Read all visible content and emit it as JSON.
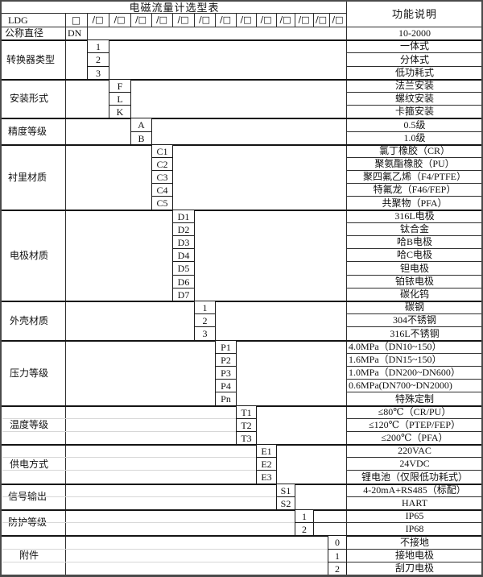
{
  "table": {
    "title": "电磁流量计选型表",
    "function_header": "功能说明",
    "model_prefix": "LDG",
    "dn_box": "□",
    "slot_symbol": "/□",
    "slot_count": 13,
    "colors": {
      "border": "#1a1a1a",
      "background": "#ffffff",
      "text": "#111111"
    },
    "sections": [
      {
        "label": "公称直径",
        "options": [
          {
            "code": "DN",
            "desc": "10-2000"
          }
        ]
      },
      {
        "label": "转换器类型",
        "options": [
          {
            "code": "1",
            "desc": "一体式"
          },
          {
            "code": "2",
            "desc": "分体式"
          },
          {
            "code": "3",
            "desc": "低功耗式"
          }
        ]
      },
      {
        "label": "安装形式",
        "options": [
          {
            "code": "F",
            "desc": "法兰安装"
          },
          {
            "code": "L",
            "desc": "螺纹安装"
          },
          {
            "code": "K",
            "desc": "卡箍安装"
          }
        ]
      },
      {
        "label": "精度等级",
        "options": [
          {
            "code": "A",
            "desc": "0.5级"
          },
          {
            "code": "B",
            "desc": "1.0级"
          }
        ]
      },
      {
        "label": "衬里材质",
        "options": [
          {
            "code": "C1",
            "desc": "氯丁橡胶（CR）"
          },
          {
            "code": "C2",
            "desc": "聚氨酯橡胶（PU）"
          },
          {
            "code": "C3",
            "desc": "聚四氟乙烯（F4/PTFE）"
          },
          {
            "code": "C4",
            "desc": "特氟龙（F46/FEP）"
          },
          {
            "code": "C5",
            "desc": "共聚物（PFA）"
          }
        ]
      },
      {
        "label": "电极材质",
        "options": [
          {
            "code": "D1",
            "desc": "316L电极"
          },
          {
            "code": "D2",
            "desc": "钛合金"
          },
          {
            "code": "D3",
            "desc": "哈B电极"
          },
          {
            "code": "D4",
            "desc": "哈C电极"
          },
          {
            "code": "D5",
            "desc": "钽电极"
          },
          {
            "code": "D6",
            "desc": "铂铱电极"
          },
          {
            "code": "D7",
            "desc": "碳化钨"
          }
        ]
      },
      {
        "label": "外壳材质",
        "options": [
          {
            "code": "1",
            "desc": "碳钢"
          },
          {
            "code": "2",
            "desc": "304不锈钢"
          },
          {
            "code": "3",
            "desc": "316L不锈钢"
          }
        ]
      },
      {
        "label": "压力等级",
        "options": [
          {
            "code": "P1",
            "desc": "4.0MPa（DN10~150）",
            "align": "left"
          },
          {
            "code": "P2",
            "desc": "1.6MPa（DN15~150）",
            "align": "left"
          },
          {
            "code": "P3",
            "desc": "1.0MPa（DN200~DN600）",
            "align": "left"
          },
          {
            "code": "P4",
            "desc": "0.6MPa(DN700~DN2000)",
            "align": "left"
          },
          {
            "code": "Pn",
            "desc": "特殊定制"
          }
        ]
      },
      {
        "label": "温度等级",
        "options": [
          {
            "code": "T1",
            "desc": "≤80℃（CR/PU）"
          },
          {
            "code": "T2",
            "desc": "≤120℃（PTEP/FEP）"
          },
          {
            "code": "T3",
            "desc": "≤200℃（PFA）"
          }
        ]
      },
      {
        "label": "供电方式",
        "options": [
          {
            "code": "E1",
            "desc": "220VAC"
          },
          {
            "code": "E2",
            "desc": "24VDC"
          },
          {
            "code": "E3",
            "desc": "锂电池（仅限低功耗式）"
          }
        ]
      },
      {
        "label": "信号输出",
        "options": [
          {
            "code": "S1",
            "desc": "4-20mA+RS485（标配）"
          },
          {
            "code": "S2",
            "desc": "HART"
          }
        ]
      },
      {
        "label": "防护等级",
        "options": [
          {
            "code": "1",
            "desc": "IP65"
          },
          {
            "code": "2",
            "desc": "IP68"
          }
        ]
      },
      {
        "label": "附件",
        "options": [
          {
            "code": "0",
            "desc": "不接地"
          },
          {
            "code": "1",
            "desc": "接地电极"
          },
          {
            "code": "2",
            "desc": "刮刀电极"
          }
        ]
      }
    ]
  }
}
